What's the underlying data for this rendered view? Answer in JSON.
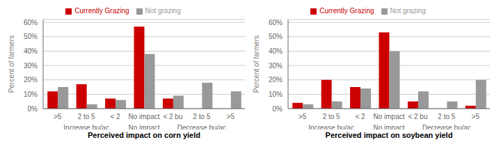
{
  "chart_data": [
    {
      "type": "bar",
      "categories": [
        ">5",
        "2 to 5",
        "< 2",
        "No impact",
        "< 2 bu",
        "2 to 5",
        ">5"
      ],
      "annotations": [
        null,
        "Increase bu/ac",
        null,
        "No impact",
        null,
        "Decrease bu/ac",
        null
      ],
      "series": [
        {
          "name": "Currently Grazing",
          "color": "#cc0000",
          "values": [
            0.12,
            0.17,
            0.07,
            0.57,
            0.07,
            0,
            0
          ]
        },
        {
          "name": "Not grazing",
          "color": "#999999",
          "values": [
            0.15,
            0.03,
            0.06,
            0.38,
            0.09,
            0.18,
            0.12
          ]
        }
      ],
      "xlabel": "Perceived impact on corn yield",
      "ylabel": "Percent of farmers",
      "ylim": [
        0,
        0.62
      ],
      "yticks": [
        {
          "value": 0,
          "label": "0%"
        },
        {
          "value": 0.1,
          "label": "10%"
        },
        {
          "value": 0.2,
          "label": "20%"
        },
        {
          "value": 0.3,
          "label": "30%"
        },
        {
          "value": 0.4,
          "label": "40%"
        },
        {
          "value": 0.5,
          "label": "50%"
        },
        {
          "value": 0.6,
          "label": "60%"
        }
      ],
      "grid": true,
      "legend": "top"
    },
    {
      "type": "bar",
      "categories": [
        ">5",
        "2 to 5",
        "< 2",
        "No impact",
        "< 2 bu",
        "2 to 5",
        ">5"
      ],
      "annotations": [
        null,
        "Increase bu/ac",
        null,
        "No impact",
        null,
        "Decrease bu/ac",
        null
      ],
      "series": [
        {
          "name": "Currently Grazing",
          "color": "#cc0000",
          "values": [
            0.04,
            0.2,
            0.15,
            0.53,
            0.05,
            0,
            0.02
          ]
        },
        {
          "name": "Not grazing",
          "color": "#999999",
          "values": [
            0.03,
            0.05,
            0.14,
            0.4,
            0.12,
            0.05,
            0.2
          ]
        }
      ],
      "xlabel": "Perceived impact on soybean yield",
      "ylabel": "Percent of farmers",
      "ylim": [
        0,
        0.62
      ],
      "yticks": [
        {
          "value": 0,
          "label": "0%"
        },
        {
          "value": 0.1,
          "label": "10%"
        },
        {
          "value": 0.2,
          "label": "20%"
        },
        {
          "value": 0.3,
          "label": "30%"
        },
        {
          "value": 0.4,
          "label": "40%"
        },
        {
          "value": 0.5,
          "label": "50%"
        },
        {
          "value": 0.6,
          "label": "60%"
        }
      ],
      "grid": true,
      "legend": "top"
    }
  ]
}
